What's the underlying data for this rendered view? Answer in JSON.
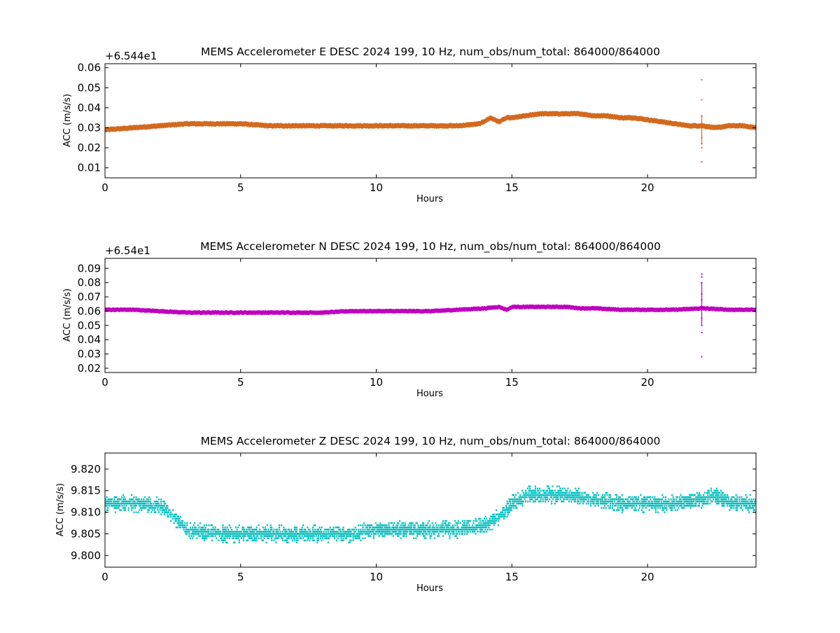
{
  "chart_data": [
    {
      "type": "scatter",
      "title": "MEMS Accelerometer E DESC 2024 199, 10 Hz, num_obs/num_total: 864000/864000",
      "xlabel": "Hours",
      "ylabel": "ACC (m/s/s)",
      "offset_label": "+6.544e1",
      "color": "#d2691e",
      "xlim": [
        0,
        24
      ],
      "ylim": [
        0.005,
        0.062
      ],
      "xticks": [
        0,
        5,
        10,
        15,
        20
      ],
      "yticks": [
        0.01,
        0.02,
        0.03,
        0.04,
        0.05,
        0.06
      ],
      "ytick_labels": [
        "0.01",
        "0.02",
        "0.03",
        "0.04",
        "0.05",
        "0.06"
      ],
      "series": [
        {
          "x": [
            0,
            1,
            2,
            3,
            4,
            5,
            6,
            7,
            8,
            9,
            10,
            11,
            12,
            13,
            13.8,
            14.2,
            14.5,
            14.8,
            15,
            15.5,
            16,
            16.5,
            17,
            17.5,
            18,
            18.5,
            19,
            19.5,
            20,
            20.5,
            21,
            21.5,
            22,
            22.5,
            23,
            23.5,
            24
          ],
          "y": [
            0.029,
            0.03,
            0.031,
            0.032,
            0.032,
            0.032,
            0.031,
            0.031,
            0.031,
            0.031,
            0.031,
            0.031,
            0.031,
            0.031,
            0.032,
            0.035,
            0.033,
            0.035,
            0.035,
            0.036,
            0.037,
            0.037,
            0.037,
            0.037,
            0.036,
            0.036,
            0.035,
            0.035,
            0.034,
            0.033,
            0.032,
            0.031,
            0.031,
            0.03,
            0.031,
            0.031,
            0.03
          ],
          "band": 0.0025
        }
      ],
      "spikes": [
        {
          "x": 22.0,
          "values": [
            0.054,
            0.044,
            0.036,
            0.025,
            0.022,
            0.02,
            0.013
          ]
        }
      ]
    },
    {
      "type": "scatter",
      "title": "MEMS Accelerometer N DESC 2024 199, 10 Hz, num_obs/num_total: 864000/864000",
      "xlabel": "Hours",
      "ylabel": "ACC (m/s/s)",
      "offset_label": "+6.54e1",
      "color": "#bf00bf",
      "xlim": [
        0,
        24
      ],
      "ylim": [
        0.017,
        0.097
      ],
      "xticks": [
        0,
        5,
        10,
        15,
        20
      ],
      "yticks": [
        0.02,
        0.03,
        0.04,
        0.05,
        0.06,
        0.07,
        0.08,
        0.09
      ],
      "ytick_labels": [
        "0.02",
        "0.03",
        "0.04",
        "0.05",
        "0.06",
        "0.07",
        "0.08",
        "0.09"
      ],
      "series": [
        {
          "x": [
            0,
            1,
            2,
            3,
            4,
            5,
            6,
            7,
            8,
            9,
            10,
            11,
            12,
            13,
            14,
            14.5,
            14.8,
            15,
            15.5,
            16,
            16.5,
            17,
            17.5,
            18,
            19,
            20,
            21,
            22,
            23,
            24
          ],
          "y": [
            0.061,
            0.061,
            0.06,
            0.059,
            0.059,
            0.059,
            0.059,
            0.059,
            0.059,
            0.06,
            0.06,
            0.06,
            0.06,
            0.061,
            0.062,
            0.063,
            0.061,
            0.063,
            0.063,
            0.063,
            0.063,
            0.063,
            0.062,
            0.062,
            0.061,
            0.061,
            0.061,
            0.062,
            0.061,
            0.061
          ],
          "band": 0.003
        }
      ],
      "spikes": [
        {
          "x": 22.0,
          "values": [
            0.086,
            0.084,
            0.08,
            0.072,
            0.068,
            0.055,
            0.05,
            0.045,
            0.028
          ]
        }
      ]
    },
    {
      "type": "scatter",
      "title": "MEMS Accelerometer Z DESC 2024 199, 10 Hz, num_obs/num_total: 864000/864000",
      "xlabel": "Hours",
      "ylabel": "ACC (m/s/s)",
      "offset_label": "",
      "color": "#00bfbf",
      "xlim": [
        0,
        24
      ],
      "ylim": [
        9.7973,
        9.8237
      ],
      "xticks": [
        0,
        5,
        10,
        15,
        20
      ],
      "yticks": [
        9.8,
        9.805,
        9.81,
        9.815,
        9.82
      ],
      "ytick_labels": [
        "9.800",
        "9.805",
        "9.810",
        "9.815",
        "9.820"
      ],
      "level_step": 0.0005,
      "series": [
        {
          "x": [
            0,
            1,
            2,
            2.5,
            3,
            4,
            5,
            6,
            7,
            8,
            9,
            10,
            11,
            12,
            13,
            14,
            14.5,
            15,
            15.5,
            16,
            17,
            18,
            19,
            20,
            21,
            22,
            22.5,
            23,
            24
          ],
          "y": [
            9.812,
            9.812,
            9.8115,
            9.809,
            9.806,
            9.805,
            9.805,
            9.805,
            9.805,
            9.805,
            9.805,
            9.806,
            9.806,
            9.806,
            9.806,
            9.807,
            9.809,
            9.812,
            9.814,
            9.814,
            9.814,
            9.813,
            9.812,
            9.812,
            9.812,
            9.813,
            9.814,
            9.812,
            9.812
          ],
          "band": 0.002
        }
      ],
      "spikes": []
    }
  ]
}
